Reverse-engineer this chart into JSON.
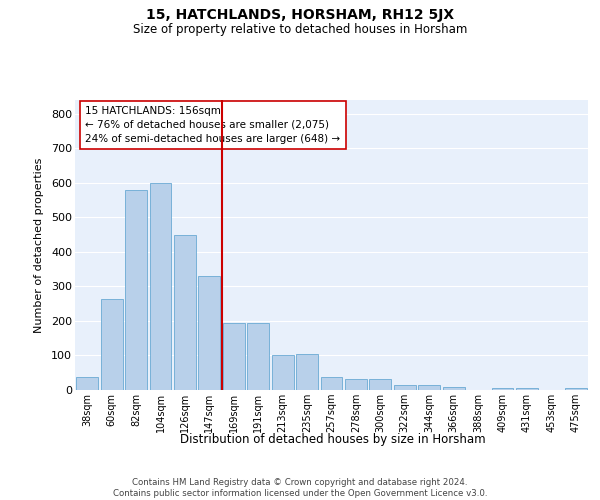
{
  "title": "15, HATCHLANDS, HORSHAM, RH12 5JX",
  "subtitle": "Size of property relative to detached houses in Horsham",
  "xlabel": "Distribution of detached houses by size in Horsham",
  "ylabel": "Number of detached properties",
  "categories": [
    "38sqm",
    "60sqm",
    "82sqm",
    "104sqm",
    "126sqm",
    "147sqm",
    "169sqm",
    "191sqm",
    "213sqm",
    "235sqm",
    "257sqm",
    "278sqm",
    "300sqm",
    "322sqm",
    "344sqm",
    "366sqm",
    "388sqm",
    "409sqm",
    "431sqm",
    "453sqm",
    "475sqm"
  ],
  "values": [
    38,
    265,
    580,
    600,
    450,
    330,
    195,
    195,
    100,
    105,
    38,
    32,
    32,
    14,
    14,
    10,
    0,
    7,
    7,
    0,
    7
  ],
  "bar_color": "#b8d0ea",
  "bar_edge_color": "#6aaad4",
  "marker_index": 5,
  "marker_color": "#cc0000",
  "annotation_line1": "15 HATCHLANDS: 156sqm",
  "annotation_line2": "← 76% of detached houses are smaller (2,075)",
  "annotation_line3": "24% of semi-detached houses are larger (648) →",
  "annotation_box_color": "#ffffff",
  "annotation_box_edge_color": "#cc0000",
  "ylim": [
    0,
    840
  ],
  "yticks": [
    0,
    100,
    200,
    300,
    400,
    500,
    600,
    700,
    800
  ],
  "footer": "Contains HM Land Registry data © Crown copyright and database right 2024.\nContains public sector information licensed under the Open Government Licence v3.0.",
  "bg_color": "#e8f0fb",
  "fig_color": "#ffffff"
}
